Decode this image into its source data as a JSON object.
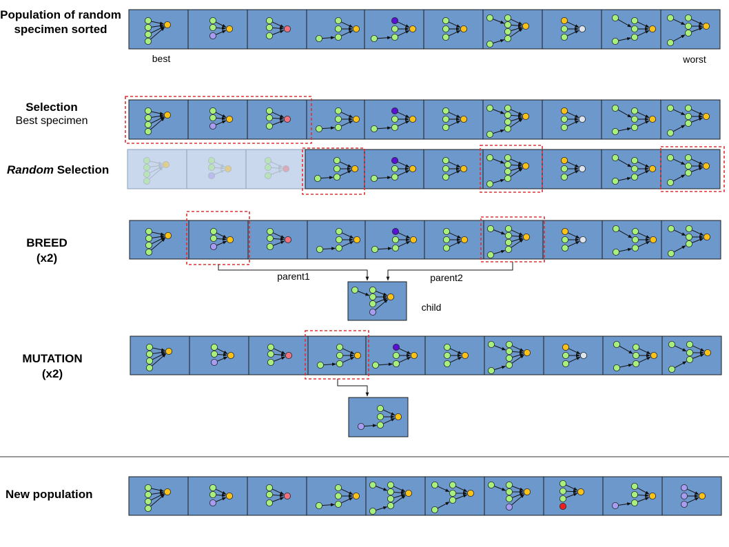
{
  "labels": {
    "population_title": "Population of random specimen sorted",
    "best": "best",
    "worst": "worst",
    "selection_title": "Selection",
    "selection_sub": "Best specimen",
    "random_word": "Random",
    "random_rest": " Selection",
    "breed_title": "BREED",
    "breed_count": "(x2)",
    "parent1": "parent1",
    "parent2": "parent2",
    "child": "child",
    "mutation_title": "MUTATION",
    "mutation_count": "(x2)",
    "new_population": "New population"
  },
  "colors": {
    "cell_fill": "#6d98cc",
    "faded_fill": "#c9d8ec",
    "node_green": "#a8f07c",
    "node_orange": "#fcc117",
    "node_purple": "#a89cf2",
    "node_red": "#f0727e",
    "node_dark_purple": "#5a10d6",
    "node_gray": "#dde3ea",
    "node_bright_red": "#f02020",
    "selection_box": "#e03030"
  },
  "specimens": {
    "p1": "3-layer network: four green inputs feeding one orange output",
    "p2": "3 green + 1 purple inputs, orange output",
    "p3": "3 green inputs, red output",
    "p4": "hidden layer network with single green input, orange output",
    "p5": "hidden layer network with purple top node, orange output",
    "p6": "three green nodes to orange output",
    "p7": "two hidden layers of green nodes, orange output",
    "p8": "orange and green inputs, gray output",
    "p9": "two green inputs with hidden layer, orange output",
    "p10": "two green inputs with hidden layer, orange output",
    "n8": "green inputs with red node, orange output",
    "n9": "purple input with hidden layer, orange output",
    "n10": "three purple inputs, orange output",
    "m1": "mutated child with purple input"
  }
}
